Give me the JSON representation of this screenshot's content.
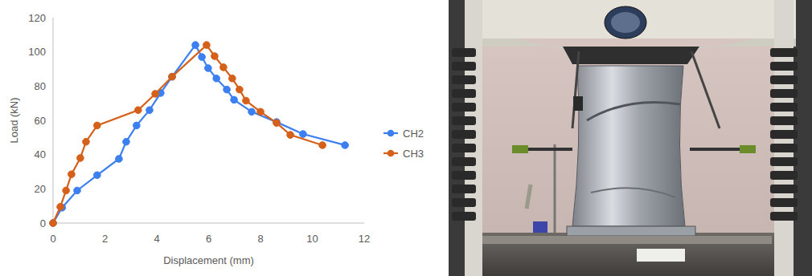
{
  "chart_data": {
    "type": "line",
    "x_label": "Displacement (mm)",
    "y_label": "Load (kN)",
    "xlim": [
      0,
      12
    ],
    "xticks": [
      0,
      2,
      4,
      6,
      8,
      10,
      12
    ],
    "ylim": [
      0,
      120
    ],
    "yticks": [
      0,
      20,
      40,
      60,
      80,
      100,
      120
    ],
    "grid": false,
    "legend": "right",
    "marker": "circle",
    "series": [
      {
        "name": "CH2",
        "color": "#3c7ff0",
        "x": [
          0,
          0.35,
          0.93,
          1.7,
          2.54,
          2.82,
          3.22,
          3.72,
          4.15,
          4.59,
          5.49,
          5.74,
          5.98,
          6.3,
          6.7,
          6.98,
          7.66,
          8.62,
          9.64,
          11.26
        ],
        "values": [
          0,
          9,
          19,
          28,
          37.5,
          47.5,
          57,
          66,
          76,
          85.5,
          104,
          97,
          90.5,
          84.5,
          78,
          72,
          65,
          59,
          52,
          45.5
        ]
      },
      {
        "name": "CH3",
        "color": "#d5601a",
        "x": [
          0,
          0.28,
          0.5,
          0.71,
          1.05,
          1.27,
          1.7,
          3.28,
          3.94,
          4.59,
          5.92,
          6.23,
          6.57,
          6.91,
          7.19,
          7.44,
          8.0,
          8.62,
          9.15,
          10.39
        ],
        "values": [
          0,
          9.5,
          19,
          28.5,
          38,
          47.5,
          57,
          66,
          75.5,
          85.5,
          104,
          97.5,
          91,
          84.5,
          78,
          71.5,
          65,
          58.5,
          51.5,
          45.5
        ]
      }
    ]
  }
}
